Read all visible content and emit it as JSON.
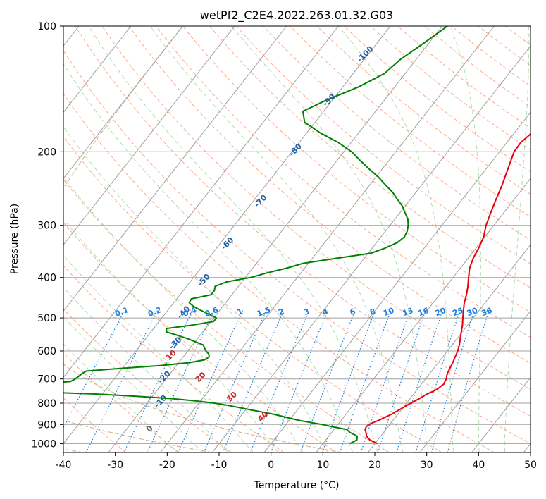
{
  "chart_data": {
    "type": "skewt",
    "title": "wetPf2_C2E4.2022.263.01.32.G03",
    "xlabel": "Temperature (°C)",
    "ylabel": "Pressure (hPa)",
    "xlim": [
      -40,
      50
    ],
    "ylim": [
      1050,
      100
    ],
    "x_ticks": [
      -40,
      -30,
      -20,
      -10,
      0,
      10,
      20,
      30,
      40,
      50
    ],
    "y_ticks": [
      1000,
      900,
      800,
      700,
      600,
      500,
      400,
      300,
      200,
      100
    ],
    "y_scale": "log",
    "grid": true,
    "colors": {
      "temperature": "#e8000b",
      "dewpoint": "#008000",
      "isotherm": "#a0a0a0",
      "dry_adiabat": "#ff9a7a",
      "moist_adiabat": "#8fcf8f",
      "mixing_ratio": "#1e7fe0",
      "wet_bulb_label": "#1f5fa8",
      "dry_label": "#cc2222",
      "theta_curve": "#d2b48c"
    },
    "series": [
      {
        "role": "temperature",
        "pressure": [
          1000,
          980,
          960,
          940,
          925,
          910,
          900,
          890,
          880,
          870,
          850,
          830,
          800,
          780,
          760,
          750,
          740,
          720,
          700,
          680,
          660,
          640,
          620,
          600,
          580,
          560,
          540,
          520,
          500,
          480,
          460,
          440,
          420,
          400,
          380,
          360,
          340,
          320,
          300,
          280,
          260,
          240,
          220,
          200,
          190,
          180,
          170,
          160,
          150,
          140,
          130,
          120,
          110,
          100
        ],
        "temperature": [
          20.5,
          18.5,
          17.3,
          16.6,
          16.0,
          15.8,
          16.0,
          16.5,
          17.2,
          17.7,
          18.8,
          19.6,
          20.8,
          21.8,
          22.6,
          23.3,
          23.8,
          24.3,
          24.0,
          23.4,
          23.1,
          22.8,
          22.4,
          22.0,
          21.4,
          20.6,
          19.8,
          19.0,
          18.0,
          17.0,
          16.0,
          15.2,
          14.2,
          13.0,
          11.8,
          11.0,
          10.5,
          9.8,
          8.5,
          7.5,
          6.5,
          5.5,
          4.2,
          2.8,
          2.7,
          3.4,
          4.5,
          5.0,
          4.3,
          3.0,
          2.3,
          3.0,
          5.2,
          8.5
        ]
      },
      {
        "role": "dewpoint",
        "pressure": [
          1000,
          980,
          960,
          940,
          925,
          910,
          900,
          890,
          880,
          870,
          850,
          830,
          810,
          800,
          790,
          780,
          770,
          760,
          750,
          740,
          730,
          720,
          710,
          700,
          690,
          680,
          670,
          660,
          650,
          640,
          630,
          620,
          610,
          600,
          580,
          560,
          540,
          530,
          520,
          510,
          500,
          490,
          480,
          470,
          460,
          450,
          440,
          430,
          420,
          410,
          400,
          390,
          380,
          370,
          360,
          350,
          340,
          330,
          320,
          310,
          300,
          290,
          280,
          270,
          260,
          250,
          240,
          230,
          220,
          210,
          200,
          190,
          180,
          170,
          160,
          150,
          140,
          130,
          120,
          110,
          100
        ],
        "dewpoint": [
          15.2,
          16.0,
          15.5,
          13.5,
          12.5,
          9.0,
          7.0,
          4.5,
          2.0,
          0.0,
          -4.0,
          -9.0,
          -14.0,
          -17.0,
          -21.0,
          -26.0,
          -33.0,
          -42.0,
          -55.0,
          -67.0,
          -72.0,
          -54.0,
          -48.0,
          -47.5,
          -47.2,
          -47.0,
          -46.5,
          -40.0,
          -33.0,
          -28.0,
          -25.5,
          -25.0,
          -25.5,
          -26.5,
          -28.0,
          -32.0,
          -37.0,
          -37.5,
          -33.0,
          -29.5,
          -29.5,
          -31.5,
          -33.5,
          -35.5,
          -37.0,
          -37.2,
          -34.0,
          -34.0,
          -34.5,
          -33.0,
          -29.0,
          -26.5,
          -23.5,
          -21.0,
          -15.5,
          -9.5,
          -7.5,
          -6.0,
          -5.5,
          -5.8,
          -6.5,
          -7.5,
          -9.0,
          -10.5,
          -12.5,
          -14.5,
          -17.0,
          -19.5,
          -22.5,
          -25.5,
          -28.5,
          -32.5,
          -37.5,
          -42.0,
          -44.0,
          -41.0,
          -37.0,
          -34.0,
          -33.0,
          -31.0,
          -29.0
        ]
      }
    ],
    "annotations": {
      "wet_bulb_labels": [
        {
          "text": "-100"
        },
        {
          "text": "-90"
        },
        {
          "text": "-80"
        },
        {
          "text": "-70"
        },
        {
          "text": "-60"
        },
        {
          "text": "-50"
        },
        {
          "text": "-40"
        },
        {
          "text": "-30"
        },
        {
          "text": "-20"
        },
        {
          "text": "-10"
        },
        {
          "text": "0"
        }
      ],
      "dry_adiabat_labels": [
        {
          "text": "10"
        },
        {
          "text": "20"
        },
        {
          "text": "30"
        },
        {
          "text": "40"
        }
      ],
      "mixing_ratio_labels": [
        "0.1",
        "0.2",
        "0.4",
        "0.6",
        "1",
        "1.5",
        "2",
        "3",
        "4",
        "6",
        "8",
        "10",
        "13",
        "16",
        "20",
        "25",
        "30",
        "36"
      ]
    }
  }
}
